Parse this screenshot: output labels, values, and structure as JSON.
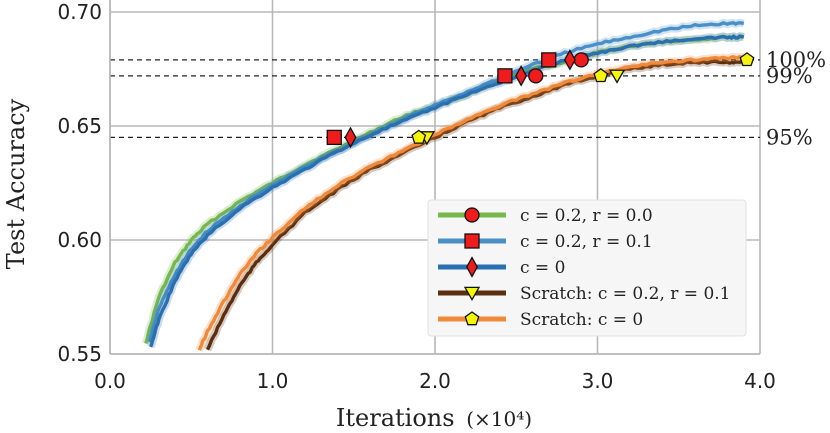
{
  "chart_data": {
    "type": "line",
    "title": "",
    "xlabel": "Iterations",
    "xlabel_unit": "(×10⁴)",
    "ylabel": "Test Accuracy",
    "xlim": [
      0.0,
      4.0
    ],
    "ylim": [
      0.55,
      0.7
    ],
    "xticks": [
      "0.0",
      "1.0",
      "2.0",
      "3.0",
      "4.0"
    ],
    "yticks": [
      "0.55",
      "0.60",
      "0.65",
      "0.70"
    ],
    "grid": true,
    "legend_position": "lower-right",
    "reference_lines": [
      {
        "label": "100%",
        "y": 0.679
      },
      {
        "label": "99%",
        "y": 0.672
      },
      {
        "label": "95%",
        "y": 0.645
      }
    ],
    "series": [
      {
        "name": "c = 0.2, r = 0.0",
        "color": "#77b84a",
        "marker": "circle",
        "marker_color": "#ee1c1c",
        "x": [
          0.22,
          0.3,
          0.4,
          0.5,
          0.6,
          0.8,
          1.0,
          1.2,
          1.4,
          1.6,
          1.8,
          2.0,
          2.2,
          2.4,
          2.6,
          2.8,
          3.0,
          3.2,
          3.4,
          3.6,
          3.8,
          3.9
        ],
        "y": [
          0.555,
          0.575,
          0.59,
          0.6,
          0.607,
          0.617,
          0.625,
          0.633,
          0.64,
          0.647,
          0.654,
          0.659,
          0.664,
          0.67,
          0.675,
          0.678,
          0.682,
          0.685,
          0.687,
          0.688,
          0.689,
          0.689
        ],
        "markers": [
          {
            "x": 2.62,
            "y": 0.672
          },
          {
            "x": 2.9,
            "y": 0.679
          }
        ]
      },
      {
        "name": "c = 0.2, r = 0.1",
        "color": "#4a90c8",
        "marker": "square",
        "marker_color": "#ee1c1c",
        "x": [
          0.24,
          0.3,
          0.4,
          0.5,
          0.6,
          0.8,
          1.0,
          1.2,
          1.4,
          1.6,
          1.8,
          2.0,
          2.2,
          2.4,
          2.6,
          2.8,
          3.0,
          3.2,
          3.4,
          3.6,
          3.8,
          3.9
        ],
        "y": [
          0.555,
          0.57,
          0.585,
          0.596,
          0.604,
          0.615,
          0.624,
          0.632,
          0.639,
          0.646,
          0.653,
          0.659,
          0.665,
          0.671,
          0.677,
          0.682,
          0.686,
          0.689,
          0.692,
          0.694,
          0.695,
          0.695
        ],
        "markers": [
          {
            "x": 1.38,
            "y": 0.645
          },
          {
            "x": 2.43,
            "y": 0.672
          },
          {
            "x": 2.7,
            "y": 0.679
          }
        ]
      },
      {
        "name": "c = 0",
        "color": "#2a6fb0",
        "marker": "diamond",
        "marker_color": "#ee1c1c",
        "x": [
          0.25,
          0.3,
          0.4,
          0.5,
          0.6,
          0.8,
          1.0,
          1.2,
          1.4,
          1.6,
          1.8,
          2.0,
          2.2,
          2.4,
          2.6,
          2.8,
          3.0,
          3.2,
          3.4,
          3.6,
          3.8,
          3.9
        ],
        "y": [
          0.553,
          0.565,
          0.582,
          0.594,
          0.602,
          0.614,
          0.623,
          0.631,
          0.639,
          0.646,
          0.652,
          0.658,
          0.664,
          0.669,
          0.674,
          0.679,
          0.682,
          0.685,
          0.687,
          0.688,
          0.689,
          0.689
        ],
        "markers": [
          {
            "x": 1.48,
            "y": 0.645
          },
          {
            "x": 2.53,
            "y": 0.672
          },
          {
            "x": 2.83,
            "y": 0.679
          }
        ]
      },
      {
        "name": "Scratch: c = 0.2, r = 0.1",
        "color": "#5a2e0e",
        "marker": "triangle-down",
        "marker_color": "#f5f50a",
        "x": [
          0.6,
          0.7,
          0.8,
          0.9,
          1.0,
          1.2,
          1.4,
          1.6,
          1.8,
          2.0,
          2.2,
          2.4,
          2.6,
          2.8,
          3.0,
          3.2,
          3.4,
          3.6,
          3.8,
          3.9
        ],
        "y": [
          0.552,
          0.567,
          0.58,
          0.59,
          0.598,
          0.612,
          0.622,
          0.631,
          0.638,
          0.645,
          0.652,
          0.658,
          0.663,
          0.668,
          0.672,
          0.675,
          0.677,
          0.678,
          0.678,
          0.678
        ],
        "markers": [
          {
            "x": 1.95,
            "y": 0.645
          },
          {
            "x": 3.12,
            "y": 0.672
          }
        ]
      },
      {
        "name": "Scratch: c = 0",
        "color": "#f08a3a",
        "marker": "pentagon",
        "marker_color": "#f5f50a",
        "x": [
          0.55,
          0.6,
          0.7,
          0.8,
          0.9,
          1.0,
          1.2,
          1.4,
          1.6,
          1.8,
          2.0,
          2.2,
          2.4,
          2.6,
          2.8,
          3.0,
          3.2,
          3.4,
          3.6,
          3.8,
          3.9
        ],
        "y": [
          0.552,
          0.56,
          0.573,
          0.585,
          0.594,
          0.601,
          0.614,
          0.624,
          0.632,
          0.639,
          0.646,
          0.653,
          0.659,
          0.664,
          0.669,
          0.673,
          0.676,
          0.678,
          0.679,
          0.68,
          0.68
        ],
        "markers": [
          {
            "x": 1.9,
            "y": 0.645
          },
          {
            "x": 3.02,
            "y": 0.672
          },
          {
            "x": 3.92,
            "y": 0.679
          }
        ]
      }
    ]
  }
}
